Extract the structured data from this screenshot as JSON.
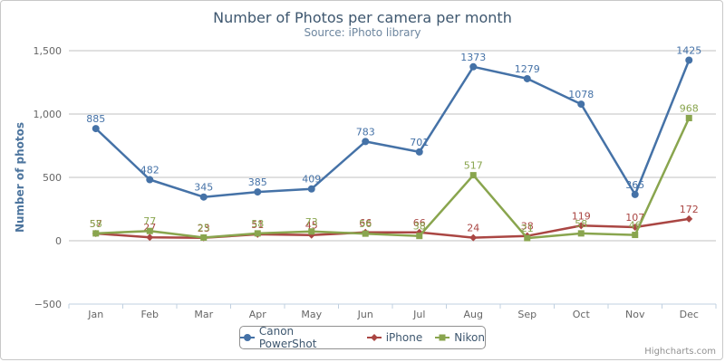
{
  "chart_data": {
    "type": "line",
    "title": "Number of Photos per camera per month",
    "subtitle": "Source: iPhoto library",
    "ylabel": "Number of photos",
    "xlabel": "",
    "categories": [
      "Jan",
      "Feb",
      "Mar",
      "Apr",
      "May",
      "Jun",
      "Jul",
      "Aug",
      "Sep",
      "Oct",
      "Nov",
      "Dec"
    ],
    "ylim": [
      -500,
      1500
    ],
    "yticks": [
      -500,
      0,
      500,
      1000,
      1500
    ],
    "ytick_labels": [
      "−500",
      "0",
      "500",
      "1,000",
      "1,500"
    ],
    "grid": true,
    "legend_position": "bottom-center",
    "series": [
      {
        "name": "Canon PowerShot",
        "color": "#4572a7",
        "marker": "circle",
        "values": [
          885,
          482,
          345,
          385,
          409,
          783,
          701,
          1373,
          1279,
          1078,
          365,
          1425
        ]
      },
      {
        "name": "iPhone",
        "color": "#aa4643",
        "marker": "diamond",
        "values": [
          57,
          27,
          23,
          51,
          45,
          66,
          66,
          24,
          38,
          119,
          107,
          172
        ]
      },
      {
        "name": "Nikon",
        "color": "#89a54e",
        "marker": "square",
        "values": [
          58,
          77,
          25,
          58,
          73,
          56,
          38,
          517,
          21,
          58,
          46,
          968
        ]
      }
    ]
  },
  "credits": "Highcharts.com"
}
